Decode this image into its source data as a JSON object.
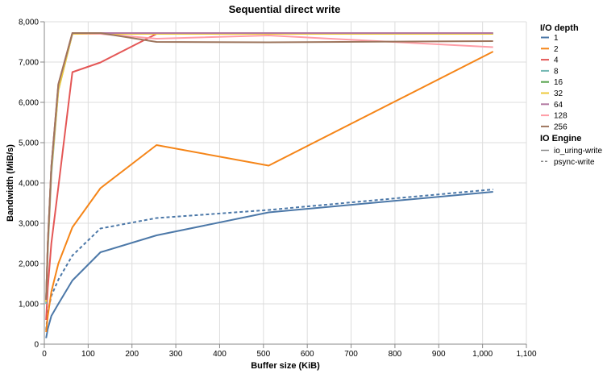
{
  "chart_data": {
    "type": "line",
    "title": "Sequential direct write",
    "xlabel": "Buffer size (KiB)",
    "ylabel": "Bandwidth (MiB/s)",
    "xlim": [
      0,
      1100
    ],
    "ylim": [
      0,
      8000
    ],
    "x_ticks": [
      0,
      100,
      200,
      300,
      400,
      500,
      600,
      700,
      800,
      900,
      1000,
      1100
    ],
    "x_tick_labels": [
      "0",
      "100",
      "200",
      "300",
      "400",
      "500",
      "600",
      "700",
      "800",
      "900",
      "1,000",
      "1,100"
    ],
    "y_ticks": [
      0,
      1000,
      2000,
      3000,
      4000,
      5000,
      6000,
      7000,
      8000
    ],
    "y_tick_labels": [
      "0",
      "1,000",
      "2,000",
      "3,000",
      "4,000",
      "5,000",
      "6,000",
      "7,000",
      "8,000"
    ],
    "grid": true,
    "legend_placement": "right",
    "legend": {
      "depth_title": "I/O depth",
      "engine_title": "IO Engine",
      "engines": [
        {
          "name": "io_uring-write",
          "dash": "solid"
        },
        {
          "name": "psync-write",
          "dash": "dashed"
        }
      ]
    },
    "series": [
      {
        "depth": "1",
        "engine": "io_uring-write",
        "color": "#4c78a8",
        "x": [
          4,
          8,
          16,
          32,
          64,
          128,
          256,
          512,
          1024
        ],
        "y": [
          150,
          380,
          700,
          1000,
          1580,
          2280,
          2700,
          3270,
          3780
        ]
      },
      {
        "depth": "1",
        "engine": "psync-write",
        "color": "#4c78a8",
        "x": [
          4,
          8,
          16,
          32,
          64,
          128,
          256,
          512,
          1024
        ],
        "y": [
          350,
          800,
          1200,
          1600,
          2200,
          2870,
          3130,
          3330,
          3840
        ]
      },
      {
        "depth": "2",
        "engine": "io_uring-write",
        "color": "#f58518",
        "x": [
          4,
          8,
          16,
          32,
          64,
          128,
          256,
          512,
          1024
        ],
        "y": [
          300,
          700,
          1300,
          2000,
          2900,
          3870,
          4940,
          4430,
          7260
        ]
      },
      {
        "depth": "4",
        "engine": "io_uring-write",
        "color": "#e45756",
        "x": [
          4,
          8,
          16,
          32,
          64,
          128,
          256,
          512,
          1024
        ],
        "y": [
          600,
          1400,
          2500,
          3900,
          6750,
          6990,
          7700,
          7700,
          7700
        ]
      },
      {
        "depth": "8",
        "engine": "io_uring-write",
        "color": "#72b7b2",
        "x": [
          4,
          8,
          16,
          32,
          64,
          128,
          256,
          512,
          1024
        ],
        "y": [
          1000,
          2300,
          4200,
          6300,
          7700,
          7700,
          7700,
          7700,
          7700
        ]
      },
      {
        "depth": "16",
        "engine": "io_uring-write",
        "color": "#54a24b",
        "x": [
          4,
          8,
          16,
          32,
          64,
          128,
          256,
          512,
          1024
        ],
        "y": [
          1100,
          2500,
          4400,
          6400,
          7720,
          7720,
          7720,
          7720,
          7720
        ]
      },
      {
        "depth": "32",
        "engine": "io_uring-write",
        "color": "#eeca3b",
        "x": [
          4,
          8,
          16,
          32,
          64,
          128,
          256,
          512,
          1024
        ],
        "y": [
          1050,
          2400,
          4300,
          6300,
          7700,
          7700,
          7700,
          7700,
          7700
        ]
      },
      {
        "depth": "64",
        "engine": "io_uring-write",
        "color": "#b279a2",
        "x": [
          4,
          8,
          16,
          32,
          64,
          128,
          256,
          512,
          1024
        ],
        "y": [
          1100,
          2500,
          4400,
          6450,
          7720,
          7720,
          7720,
          7720,
          7720
        ]
      },
      {
        "depth": "128",
        "engine": "io_uring-write",
        "color": "#ff9da6",
        "x": [
          4,
          8,
          16,
          32,
          64,
          128,
          256,
          512,
          1024
        ],
        "y": [
          1100,
          2500,
          4400,
          6450,
          7720,
          7700,
          7580,
          7660,
          7370
        ]
      },
      {
        "depth": "256",
        "engine": "io_uring-write",
        "color": "#9d755d",
        "x": [
          4,
          8,
          16,
          32,
          64,
          128,
          256,
          512,
          1024
        ],
        "y": [
          1100,
          2500,
          4400,
          6450,
          7720,
          7720,
          7500,
          7490,
          7520
        ]
      }
    ]
  }
}
